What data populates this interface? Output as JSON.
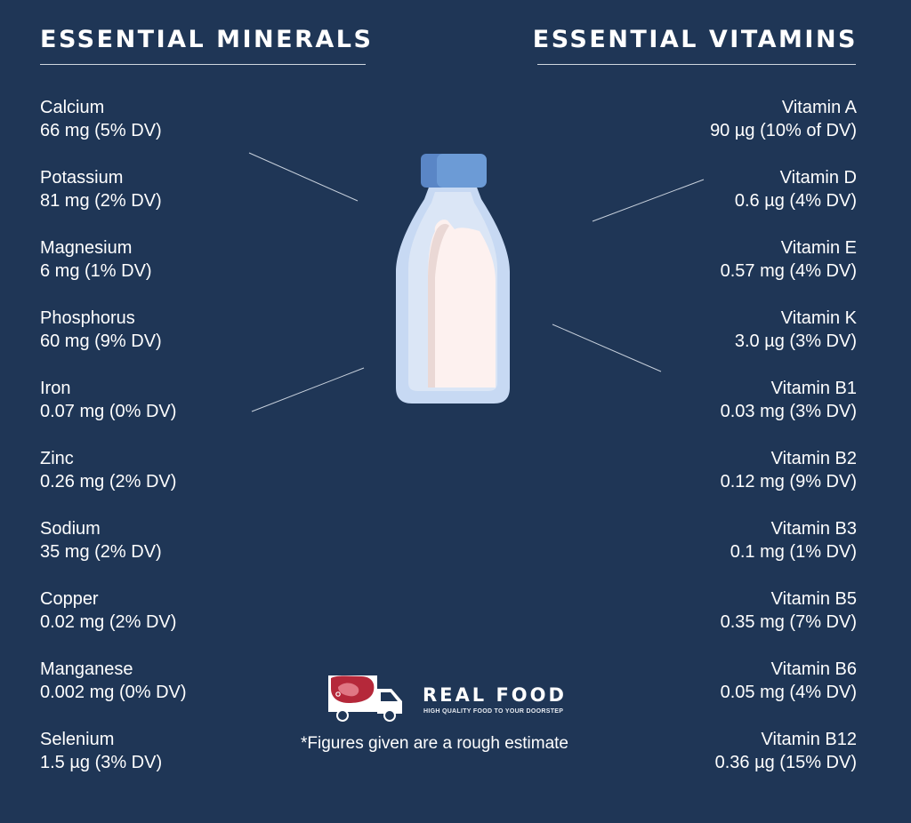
{
  "minerals": {
    "heading": "ESSENTIAL MINERALS",
    "items": [
      {
        "name": "Calcium",
        "amount": "66 mg (5% DV)"
      },
      {
        "name": "Potassium",
        "amount": "81 mg (2% DV)"
      },
      {
        "name": "Magnesium",
        "amount": "6 mg (1% DV)"
      },
      {
        "name": "Phosphorus",
        "amount": "60 mg (9% DV)"
      },
      {
        "name": "Iron",
        "amount": "0.07 mg (0% DV)"
      },
      {
        "name": "Zinc",
        "amount": "0.26 mg (2% DV)"
      },
      {
        "name": "Sodium",
        "amount": "35 mg (2% DV)"
      },
      {
        "name": "Copper",
        "amount": "0.02 mg (2% DV)"
      },
      {
        "name": "Manganese",
        "amount": "0.002 mg (0% DV)"
      },
      {
        "name": "Selenium",
        "amount": "1.5 µg (3% DV)"
      }
    ]
  },
  "vitamins": {
    "heading": "ESSENTIAL VITAMINS",
    "items": [
      {
        "name": "Vitamin A",
        "amount": "90 µg (10% of DV)"
      },
      {
        "name": "Vitamin D",
        "amount": "0.6 µg (4% DV)"
      },
      {
        "name": "Vitamin E",
        "amount": "0.57 mg (4% DV)"
      },
      {
        "name": "Vitamin K",
        "amount": "3.0 µg (3% DV)"
      },
      {
        "name": "Vitamin B1",
        "amount": "0.03 mg (3% DV)"
      },
      {
        "name": "Vitamin B2",
        "amount": "0.12 mg (9% DV)"
      },
      {
        "name": "Vitamin B3",
        "amount": "0.1 mg (1% DV)"
      },
      {
        "name": "Vitamin B5",
        "amount": "0.35 mg (7% DV)"
      },
      {
        "name": "Vitamin B6",
        "amount": "0.05 mg (4% DV)"
      },
      {
        "name": "Vitamin B12",
        "amount": "0.36 µg (15% DV)"
      }
    ]
  },
  "brand": {
    "name": "REAL FOOD",
    "tagline": "HIGH QUALITY FOOD TO YOUR DOORSTEP"
  },
  "footnote": "*Figures given are a rough estimate",
  "colors": {
    "background": "#1f3656",
    "bottle_cap": "#6c9bd6",
    "milk": "#fdf1ef",
    "logo_meat": "#b5283a"
  },
  "icons": {
    "bottle": "milk-bottle-icon",
    "logo": "delivery-truck-icon"
  }
}
